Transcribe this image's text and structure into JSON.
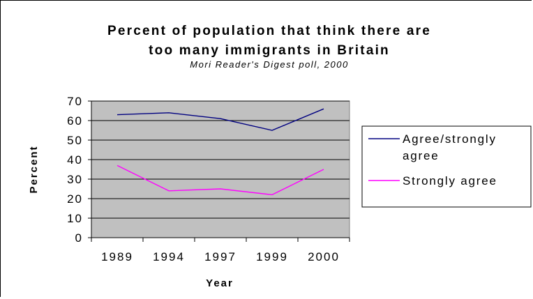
{
  "chart_data": {
    "type": "line",
    "title_lines": [
      "Percent of population that think there are",
      "too many immigrants in Britain"
    ],
    "subtitle": "Mori Reader's Digest poll, 2000",
    "xlabel": "Year",
    "ylabel": "Percent",
    "categories": [
      "1989",
      "1994",
      "1997",
      "1999",
      "2000"
    ],
    "ylim": [
      0,
      70
    ],
    "yticks": [
      "0",
      "10",
      "20",
      "30",
      "40",
      "50",
      "60",
      "70"
    ],
    "grid": "horizontal",
    "plot_background": "#c0c0c0",
    "legend_position": "right",
    "series": [
      {
        "name": "Agree/strongly agree",
        "legend_lines": [
          "Agree/strongly",
          "agree"
        ],
        "color": "#000080",
        "values": [
          63,
          64,
          61,
          55,
          66
        ]
      },
      {
        "name": "Strongly agree",
        "legend_lines": [
          "Strongly agree"
        ],
        "color": "#ff00ff",
        "values": [
          37,
          24,
          25,
          22,
          35
        ]
      }
    ]
  }
}
